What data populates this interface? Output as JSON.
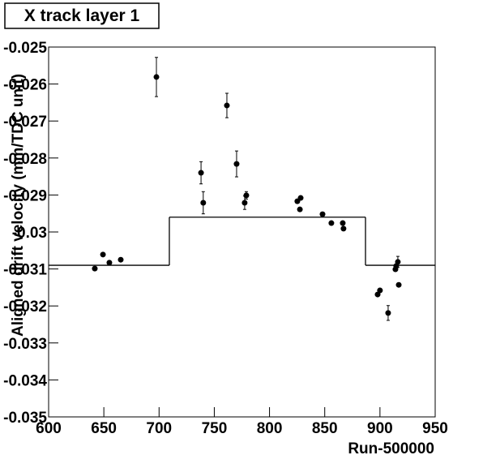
{
  "chart_data": {
    "type": "scatter",
    "title": "X track layer 1",
    "x_label": "Run-500000",
    "y_label": "Aligned drift velocity (mm/TDC unit)",
    "xlim": [
      600,
      950
    ],
    "xticks": [
      600,
      650,
      700,
      750,
      800,
      850,
      900,
      950
    ],
    "ylim": [
      -0.035,
      -0.025
    ],
    "yticks": [
      -0.035,
      -0.034,
      -0.033,
      -0.032,
      -0.031,
      -0.03,
      -0.029,
      -0.028,
      -0.027,
      -0.026,
      -0.025
    ],
    "color": "#000000",
    "x": [
      641.8,
      649.2,
      655,
      665.3,
      697.6,
      738,
      740,
      761.4,
      770.2,
      777.5,
      779,
      825.2,
      828.2,
      827.5,
      848,
      856,
      866.3,
      867,
      897.9,
      900,
      907.4,
      914,
      914.7,
      916.2,
      917
    ],
    "values": [
      -0.03099,
      -0.03061,
      -0.03083,
      -0.03075,
      -0.02581,
      -0.0284,
      -0.02921,
      -0.02658,
      -0.02816,
      -0.02921,
      -0.02901,
      -0.02917,
      -0.02908,
      -0.02939,
      -0.02952,
      -0.02976,
      -0.02976,
      -0.02991,
      -0.03169,
      -0.03158,
      -0.03219,
      -0.03101,
      -0.03092,
      -0.03081,
      -0.03143
    ],
    "errors": [
      5e-05,
      5e-05,
      5e-05,
      5e-05,
      0.00053,
      0.0003,
      0.0003,
      0.00033,
      0.00035,
      0.00018,
      0.0001,
      5e-05,
      5e-05,
      5e-05,
      5e-05,
      5e-05,
      5e-05,
      5e-05,
      5e-05,
      5e-05,
      0.0002,
      5e-05,
      5e-05,
      0.00015,
      5e-05
    ],
    "step": {
      "edges": [
        600,
        709.3,
        886.9,
        950
      ],
      "values": [
        -0.0309,
        -0.0296,
        -0.0309
      ]
    }
  }
}
